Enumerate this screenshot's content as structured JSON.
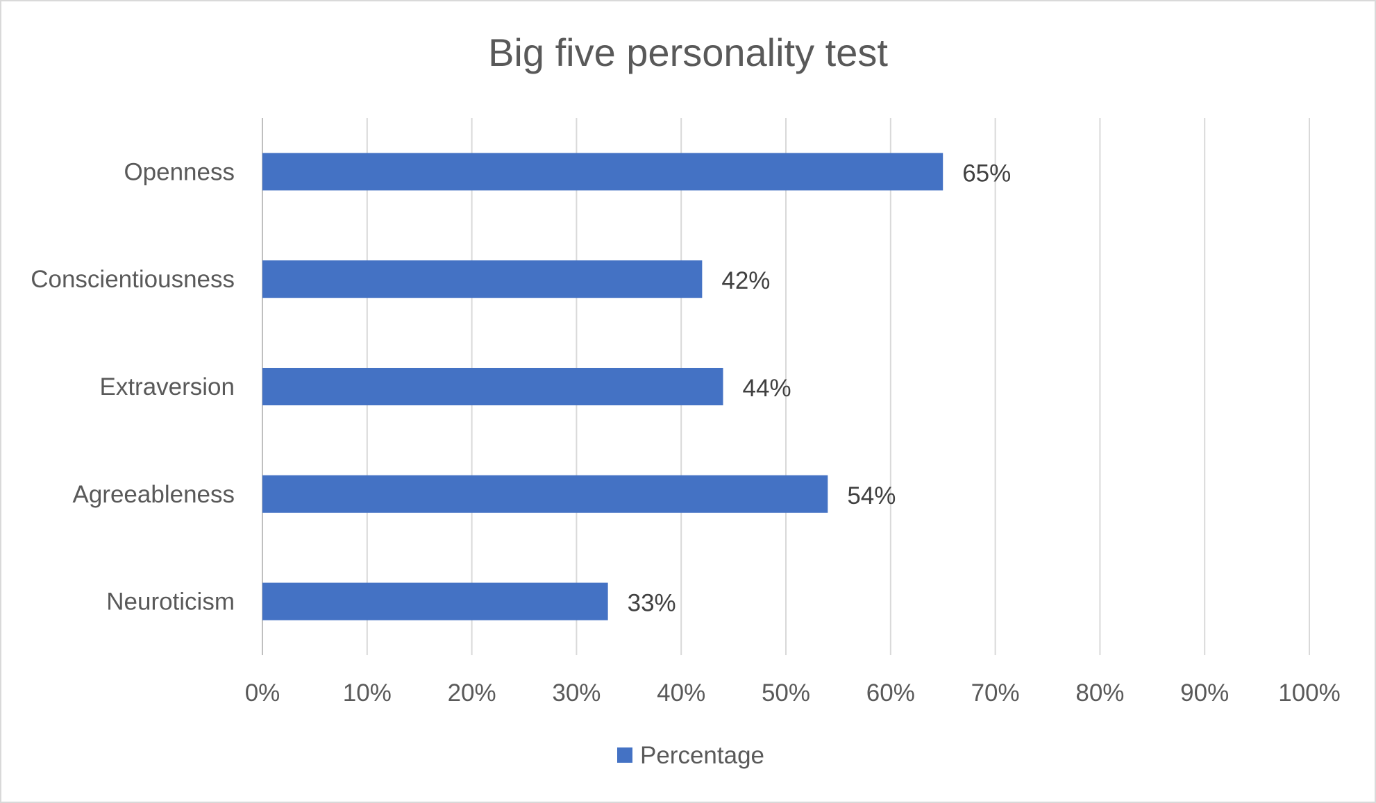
{
  "chart_data": {
    "type": "bar",
    "orientation": "horizontal",
    "title": "Big five personality test",
    "categories": [
      "Openness",
      "Conscientiousness",
      "Extraversion",
      "Agreeableness",
      "Neuroticism"
    ],
    "series": [
      {
        "name": "Percentage",
        "values": [
          0.65,
          0.42,
          0.44,
          0.54,
          0.33
        ],
        "color": "#4472c4"
      }
    ],
    "data_labels": [
      "65%",
      "42%",
      "44%",
      "54%",
      "33%"
    ],
    "xlim": [
      0,
      1
    ],
    "x_ticks": [
      0,
      0.1,
      0.2,
      0.3,
      0.4,
      0.5,
      0.6,
      0.7,
      0.8,
      0.9,
      1.0
    ],
    "x_tick_labels": [
      "0%",
      "10%",
      "20%",
      "30%",
      "40%",
      "50%",
      "60%",
      "70%",
      "80%",
      "90%",
      "100%"
    ],
    "grid": true,
    "gridline_color": "#d9d9d9",
    "legend_position": "bottom"
  }
}
